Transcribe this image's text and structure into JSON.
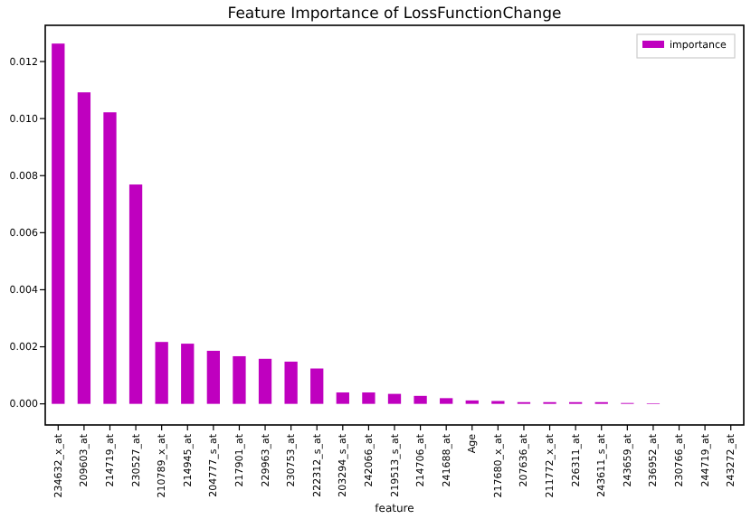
{
  "chart_data": {
    "type": "bar",
    "title": "Feature Importance of LossFunctionChange",
    "xlabel": "feature",
    "categories": [
      "234632_x_at",
      "209603_at",
      "214719_at",
      "230527_at",
      "210789_x_at",
      "214945_at",
      "204777_s_at",
      "217901_at",
      "229963_at",
      "230753_at",
      "222312_s_at",
      "203294_s_at",
      "242066_at",
      "219513_s_at",
      "214706_at",
      "241688_at",
      "Age",
      "217680_x_at",
      "207636_at",
      "211772_x_at",
      "226311_at",
      "243611_s_at",
      "243659_at",
      "236952_at",
      "230766_at",
      "244719_at",
      "243272_at"
    ],
    "series": [
      {
        "name": "importance",
        "color": "#bf00bf",
        "values": [
          0.01263,
          0.01092,
          0.01022,
          0.00769,
          0.00217,
          0.00211,
          0.00186,
          0.00167,
          0.00158,
          0.00148,
          0.00124,
          0.0004,
          0.0004,
          0.00035,
          0.00028,
          0.0002,
          0.00012,
          0.0001,
          6e-05,
          6e-05,
          6e-05,
          6e-05,
          3e-05,
          2e-05,
          0,
          0,
          0
        ]
      }
    ],
    "ylim": [
      -0.00074,
      0.01327
    ],
    "yticks": [
      {
        "value": 0,
        "label": "0.000"
      },
      {
        "value": 0.002,
        "label": "0.002"
      },
      {
        "value": 0.004,
        "label": "0.004"
      },
      {
        "value": 0.006,
        "label": "0.006"
      },
      {
        "value": 0.008,
        "label": "0.008"
      },
      {
        "value": 0.01,
        "label": "0.010"
      },
      {
        "value": 0.012,
        "label": "0.012"
      }
    ],
    "legend": "top right"
  }
}
